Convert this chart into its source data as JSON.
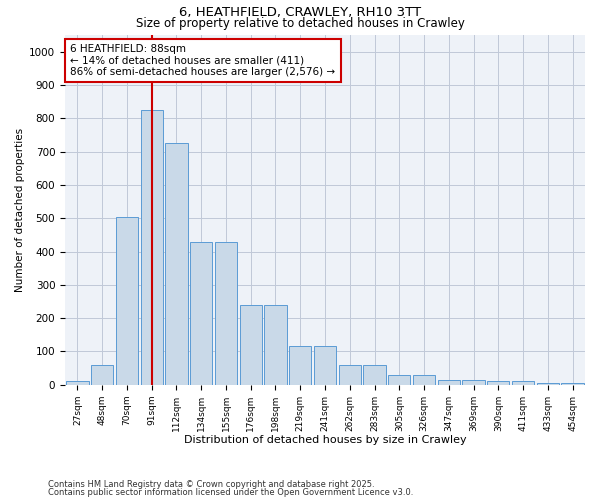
{
  "title_line1": "6, HEATHFIELD, CRAWLEY, RH10 3TT",
  "title_line2": "Size of property relative to detached houses in Crawley",
  "xlabel": "Distribution of detached houses by size in Crawley",
  "ylabel": "Number of detached properties",
  "bins": [
    "27sqm",
    "48sqm",
    "70sqm",
    "91sqm",
    "112sqm",
    "134sqm",
    "155sqm",
    "176sqm",
    "198sqm",
    "219sqm",
    "241sqm",
    "262sqm",
    "283sqm",
    "305sqm",
    "326sqm",
    "347sqm",
    "369sqm",
    "390sqm",
    "411sqm",
    "433sqm",
    "454sqm"
  ],
  "values": [
    10,
    60,
    505,
    825,
    725,
    430,
    430,
    240,
    240,
    115,
    115,
    60,
    60,
    30,
    30,
    15,
    15,
    10,
    10,
    5,
    5
  ],
  "bar_color": "#c9d9e8",
  "bar_edgecolor": "#5b9bd5",
  "vline_x_index": 3,
  "vline_color": "#cc0000",
  "annotation_label": "6 HEATHFIELD: 88sqm",
  "annotation_line2": "← 14% of detached houses are smaller (411)",
  "annotation_line3": "86% of semi-detached houses are larger (2,576) →",
  "annotation_box_color": "#cc0000",
  "ylim": [
    0,
    1050
  ],
  "yticks": [
    0,
    100,
    200,
    300,
    400,
    500,
    600,
    700,
    800,
    900,
    1000
  ],
  "grid_color": "#c0c8d8",
  "bg_color": "#eef2f8",
  "footnote1": "Contains HM Land Registry data © Crown copyright and database right 2025.",
  "footnote2": "Contains public sector information licensed under the Open Government Licence v3.0."
}
